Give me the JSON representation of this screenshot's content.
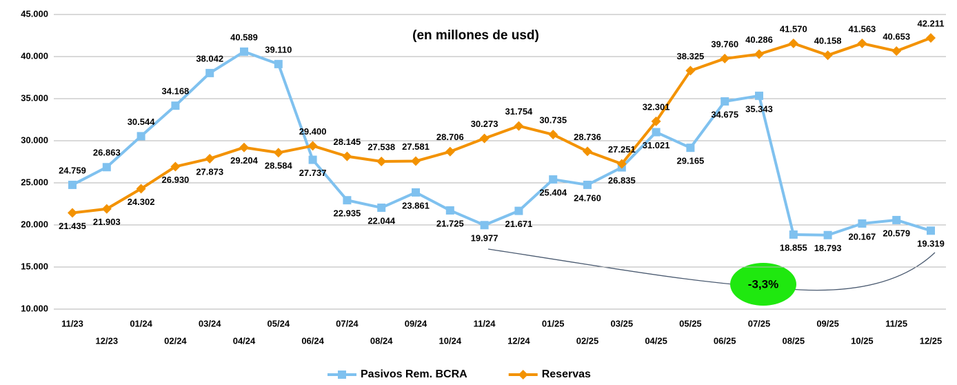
{
  "chart_data": {
    "type": "line",
    "title": "(en millones de usd)",
    "annotation": "-3,3%",
    "categories": [
      "11/23",
      "12/23",
      "01/24",
      "02/24",
      "03/24",
      "04/24",
      "05/24",
      "06/24",
      "07/24",
      "08/24",
      "09/24",
      "10/24",
      "11/24",
      "12/24",
      "01/25",
      "02/25",
      "03/25",
      "04/25",
      "05/25",
      "06/25",
      "07/25",
      "08/25",
      "09/25",
      "10/25",
      "11/25",
      "12/25"
    ],
    "series": [
      {
        "name": "Pasivos Rem. BCRA",
        "color": "#7fc1ef",
        "marker": "square",
        "values": [
          24759,
          26863,
          30544,
          34168,
          38042,
          40589,
          39110,
          27737,
          22935,
          22044,
          23861,
          21725,
          19977,
          21671,
          25404,
          24760,
          26835,
          31021,
          29165,
          34675,
          35343,
          18855,
          18793,
          20167,
          20579,
          19319
        ],
        "value_labels": [
          "24.759",
          "26.863",
          "30.544",
          "34.168",
          "38.042",
          "40.589",
          "39.110",
          "27.737",
          "22.935",
          "22.044",
          "23.861",
          "21.725",
          "19.977",
          "21.671",
          "25.404",
          "24.760",
          "26.835",
          "31.021",
          "29.165",
          "34.675",
          "35.343",
          "18.855",
          "18.793",
          "20.167",
          "20.579",
          "19.319"
        ]
      },
      {
        "name": "Reservas",
        "color": "#f39200",
        "marker": "diamond",
        "values": [
          21435,
          21903,
          24302,
          26930,
          27873,
          29204,
          28584,
          29400,
          28145,
          27538,
          27581,
          28706,
          30273,
          31754,
          30735,
          28736,
          27251,
          32301,
          38325,
          39760,
          40286,
          41570,
          40158,
          41563,
          40653,
          42211
        ],
        "value_labels": [
          "21.435",
          "21.903",
          "24.302",
          "26.930",
          "27.873",
          "29.204",
          "28.584",
          "29.400",
          "28.145",
          "27.538",
          "27.581",
          "28.706",
          "30.273",
          "31.754",
          "30.735",
          "28.736",
          "27.251",
          "32.301",
          "38.325",
          "39.760",
          "40.286",
          "41.570",
          "40.158",
          "41.563",
          "40.653",
          "42.211"
        ]
      }
    ],
    "ylim": [
      10000,
      45000
    ],
    "yticks": [
      {
        "value": 10000,
        "label": "10.000"
      },
      {
        "value": 15000,
        "label": "15.000"
      },
      {
        "value": 20000,
        "label": "20.000"
      },
      {
        "value": 25000,
        "label": "25.000"
      },
      {
        "value": 30000,
        "label": "30.000"
      },
      {
        "value": 35000,
        "label": "35.000"
      },
      {
        "value": 40000,
        "label": "40.000"
      },
      {
        "value": 45000,
        "label": "45.000"
      }
    ],
    "grid": true,
    "legend": "bottom"
  }
}
